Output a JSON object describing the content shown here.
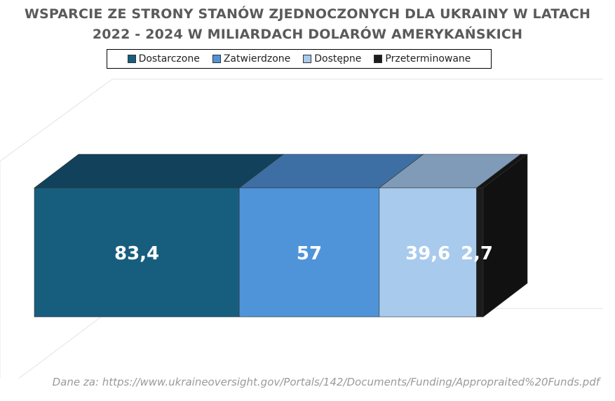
{
  "chart_data": {
    "type": "bar",
    "orientation": "horizontal-stacked-3d",
    "title": "WSPARCIE ZE STRONY STANÓW ZJEDNOCZONYCH DLA UKRAINY W LATACH 2022 - 2024 W MILIARDACH DOLARÓW AMERYKAŃSKICH",
    "title_lines": [
      "WSPARCIE ZE STRONY STANÓW ZJEDNOCZONYCH DLA UKRAINY W LATACH",
      "2022 - 2024 W MILIARDACH DOLARÓW AMERYKAŃSKICH"
    ],
    "categories": [
      ""
    ],
    "series": [
      {
        "name": "Dostarczone",
        "values": [
          83.4
        ],
        "label": "83,4",
        "color": "#175e7e",
        "top": "#12425b",
        "side": "#0f3a50"
      },
      {
        "name": "Zatwierdzone",
        "values": [
          57
        ],
        "label": "57",
        "color": "#4f94d9",
        "top": "#3d6fa4",
        "side": "#3a6898"
      },
      {
        "name": "Dostępne",
        "values": [
          39.6
        ],
        "label": "39,6",
        "color": "#a8caec",
        "top": "#7f9bb8",
        "side": "#7d96b0"
      },
      {
        "name": "Przeterminowane",
        "values": [
          2.7
        ],
        "label": "2,7",
        "color": "#1c1c1c",
        "top": "#151515",
        "side": "#111111"
      }
    ],
    "xlabel": "",
    "ylabel": "",
    "total": 182.7,
    "legend_position": "top"
  },
  "source": "Dane za: https://www.ukraineoversight.gov/Portals/142/Documents/Funding/Appropraited%20Funds.pdf"
}
